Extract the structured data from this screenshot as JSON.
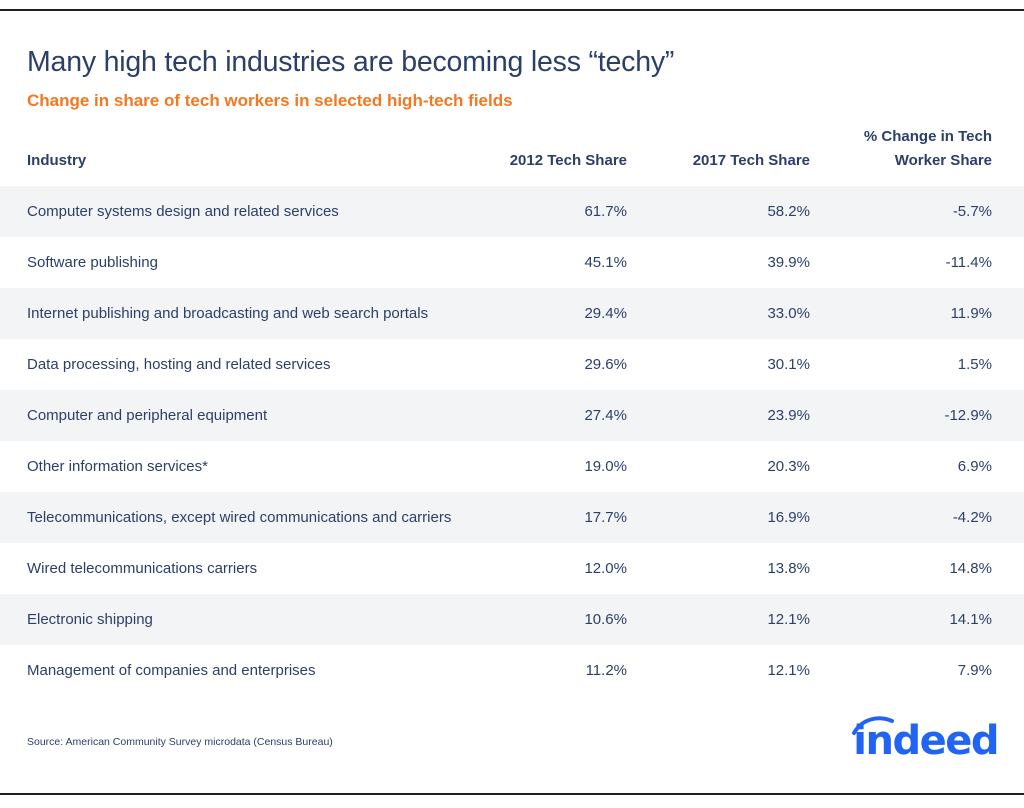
{
  "title": "Many high tech industries are becoming less “techy”",
  "subtitle": "Change in share of tech workers in selected high-tech fields",
  "colors": {
    "title": "#2b3f68",
    "subtitle": "#f27822",
    "row_shade": "#f3f4f6",
    "logo": "#2164f3"
  },
  "chart_data": {
    "type": "table",
    "columns": [
      "Industry",
      "2012 Tech Share",
      "2017 Tech Share",
      "% Change in Tech Worker Share"
    ],
    "header": {
      "industry": "Industry",
      "share_2012": "2012 Tech Share",
      "share_2017": "2017 Tech Share",
      "change_line1": "% Change in Tech",
      "change_line2": "Worker Share"
    },
    "rows": [
      {
        "industry": "Computer systems design and related services",
        "share_2012": "61.7%",
        "share_2017": "58.2%",
        "change": "-5.7%"
      },
      {
        "industry": "Software publishing",
        "share_2012": "45.1%",
        "share_2017": "39.9%",
        "change": "-11.4%"
      },
      {
        "industry": "Internet publishing and broadcasting and web search portals",
        "share_2012": "29.4%",
        "share_2017": "33.0%",
        "change": "11.9%"
      },
      {
        "industry": "Data processing, hosting and related services",
        "share_2012": "29.6%",
        "share_2017": "30.1%",
        "change": "1.5%"
      },
      {
        "industry": "Computer and peripheral equipment",
        "share_2012": "27.4%",
        "share_2017": "23.9%",
        "change": "-12.9%"
      },
      {
        "industry": "Other information services*",
        "share_2012": "19.0%",
        "share_2017": "20.3%",
        "change": "6.9%"
      },
      {
        "industry": "Telecommunications, except wired communications and carriers",
        "share_2012": "17.7%",
        "share_2017": "16.9%",
        "change": "-4.2%"
      },
      {
        "industry": "Wired telecommunications carriers",
        "share_2012": "12.0%",
        "share_2017": "13.8%",
        "change": "14.8%"
      },
      {
        "industry": "Electronic shipping",
        "share_2012": "10.6%",
        "share_2017": "12.1%",
        "change": "14.1%"
      },
      {
        "industry": "Management of companies and enterprises",
        "share_2012": "11.2%",
        "share_2017": "12.1%",
        "change": "7.9%"
      }
    ]
  },
  "source": "Source: American Community Survey microdata (Census Bureau)",
  "logo": {
    "text": "indeed",
    "icon": "indeed-logo-icon"
  }
}
